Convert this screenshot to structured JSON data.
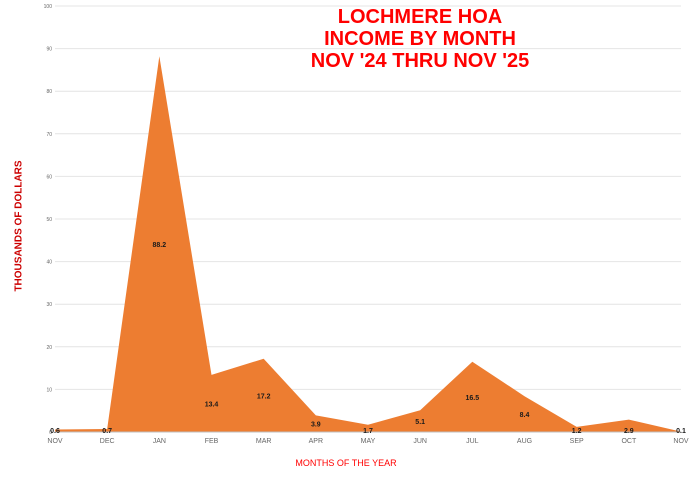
{
  "chart_data": {
    "type": "area",
    "title_lines": [
      "LOCHMERE HOA",
      "INCOME BY MONTH",
      "NOV '24 THRU NOV '25"
    ],
    "xlabel": "MONTHS OF THE YEAR",
    "ylabel": "THOUSANDS OF DOLLARS",
    "categories": [
      "NOV",
      "DEC",
      "JAN",
      "FEB",
      "MAR",
      "APR",
      "MAY",
      "JUN",
      "JUL",
      "AUG",
      "SEP",
      "OCT",
      "NOV"
    ],
    "values": [
      0.6,
      0.7,
      88.2,
      13.4,
      17.2,
      3.9,
      1.7,
      5.1,
      16.5,
      8.4,
      1.2,
      2.9,
      0.1
    ],
    "data_labels": [
      "0.6",
      "0.7",
      "88.2",
      "13.4",
      "17.2",
      "3.9",
      "1.7",
      "5.1",
      "16.5",
      "8.4",
      "1.2",
      "2.9",
      "0.1"
    ],
    "ylim": [
      0,
      100
    ],
    "yticks": [
      0,
      10,
      20,
      30,
      40,
      50,
      60,
      70,
      80,
      90,
      100
    ],
    "grid": true,
    "legend": "none",
    "fill_color": "#ed7d31",
    "title_color": "#ff0000"
  }
}
